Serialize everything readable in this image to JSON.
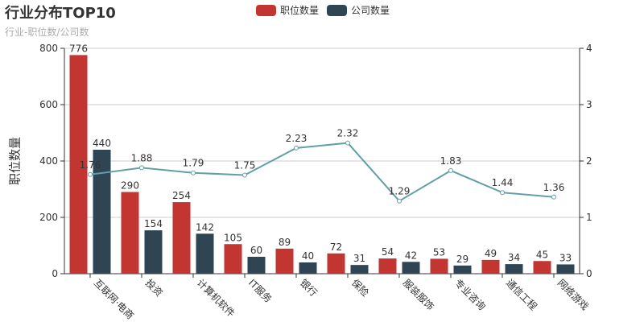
{
  "chart_data": {
    "type": "bar",
    "title": "行业分布TOP10",
    "subtitle": "行业-职位数/公司数",
    "ylabel": "职位数量",
    "categories": [
      "互联网·电商",
      "投资",
      "计算机软件",
      "IT服务",
      "银行",
      "保险",
      "服装服饰",
      "专业咨询",
      "通信工程",
      "网络游戏"
    ],
    "series": [
      {
        "name": "职位数量",
        "type": "bar",
        "axis": "left",
        "color": "#c23531",
        "values": [
          776,
          290,
          254,
          105,
          89,
          72,
          54,
          53,
          49,
          45
        ]
      },
      {
        "name": "公司数量",
        "type": "bar",
        "axis": "left",
        "color": "#2f4554",
        "values": [
          440,
          154,
          142,
          60,
          40,
          31,
          42,
          29,
          34,
          33
        ]
      },
      {
        "type": "line",
        "axis": "right",
        "color": "#61a0a8",
        "values": [
          1.76,
          1.88,
          1.79,
          1.75,
          2.23,
          2.32,
          1.29,
          1.83,
          1.44,
          1.36
        ]
      }
    ],
    "ylim": [
      0,
      800
    ],
    "yticks": [
      0,
      200,
      400,
      600,
      800
    ],
    "y2lim": [
      0,
      4
    ],
    "y2ticks": [
      0,
      1,
      2,
      3,
      4
    ],
    "grid": "horizontal",
    "legend": "top-center"
  }
}
